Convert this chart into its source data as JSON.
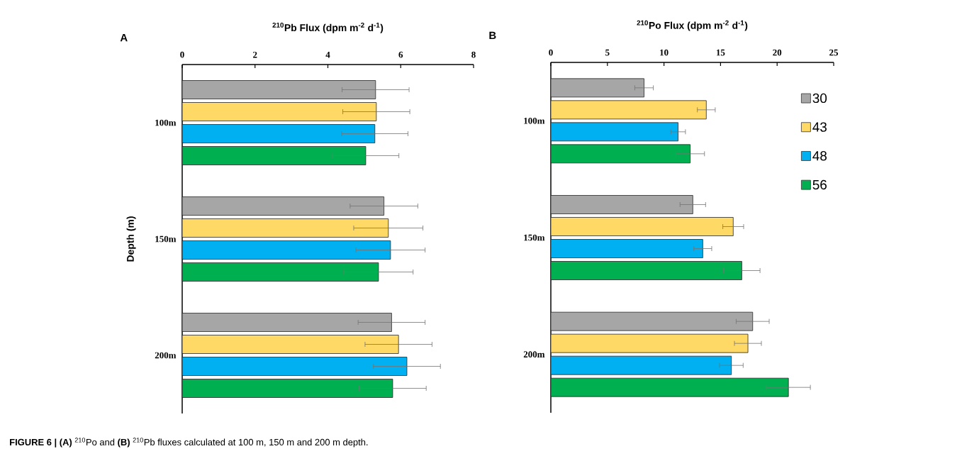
{
  "chart_data": [
    {
      "type": "bar",
      "orientation": "horizontal",
      "title": "A",
      "xlabel": "$^{210}$Pb Flux (dpm m$^{-2}$ d$^{-1}$)",
      "ylabel": "Depth (m)",
      "categories": [
        "100m",
        "150m",
        "200m"
      ],
      "series": [
        {
          "color": "#a6a6a6",
          "values": [
            5.31,
            5.54,
            5.75
          ],
          "errors": [
            0.92,
            0.93,
            0.92
          ]
        },
        {
          "color": "#ffd966",
          "values": [
            5.33,
            5.66,
            5.94
          ],
          "errors": [
            0.92,
            0.95,
            0.92
          ]
        },
        {
          "color": "#00b0f0",
          "values": [
            5.29,
            5.72,
            6.17
          ],
          "errors": [
            0.91,
            0.95,
            0.92
          ]
        },
        {
          "color": "#00b050",
          "values": [
            5.04,
            5.39,
            5.78
          ],
          "errors": [
            0.91,
            0.95,
            0.92
          ]
        }
      ],
      "xlim": [
        0,
        8
      ],
      "xticks": [
        0,
        2,
        4,
        6,
        8
      ],
      "annotations": [
        "**FIGURE 6 | (A)** $^{210}$Po and **(B)** $^{210}$Pb fluxes calculated at 100 m, 150 m and 200 m depth."
      ]
    },
    {
      "type": "bar",
      "orientation": "horizontal",
      "title": "B",
      "xlabel": "$^{210}$Po Flux (dpm m$^{-2}$ d$^{-1}$)",
      "categories": [
        "100m",
        "150m",
        "200m"
      ],
      "series": [
        {
          "name": "30",
          "color": "#a6a6a6",
          "values": [
            8.24,
            12.55,
            17.84
          ],
          "errors": [
            0.82,
            1.13,
            1.46
          ]
        },
        {
          "name": "43",
          "color": "#ffd966",
          "values": [
            13.74,
            16.12,
            17.42
          ],
          "errors": [
            0.79,
            0.92,
            1.19
          ]
        },
        {
          "name": "48",
          "color": "#00b0f0",
          "values": [
            11.25,
            13.43,
            15.96
          ],
          "errors": [
            0.65,
            0.79,
            1.04
          ]
        },
        {
          "name": "56",
          "color": "#00b050",
          "values": [
            12.32,
            16.88,
            21.0
          ],
          "errors": [
            1.26,
            1.61,
            1.94
          ]
        }
      ],
      "xlim": [
        0,
        25
      ],
      "xticks": [
        0,
        5,
        10,
        15,
        20,
        25
      ],
      "legend": "top right"
    }
  ]
}
